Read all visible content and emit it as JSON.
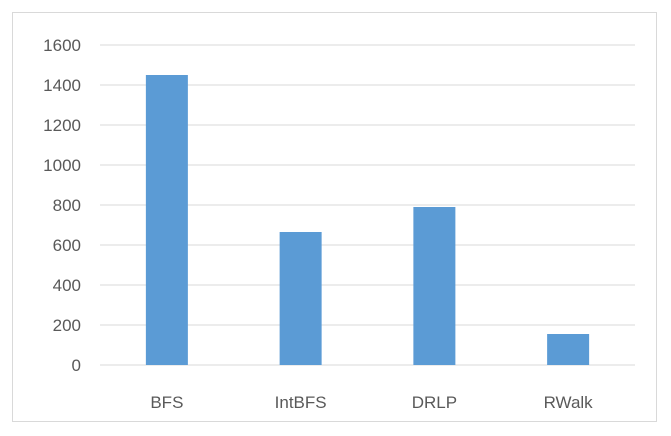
{
  "chart_data": {
    "type": "bar",
    "title": "",
    "xlabel": "",
    "ylabel": "",
    "categories": [
      "BFS",
      "IntBFS",
      "DRLP",
      "RWalk"
    ],
    "values": [
      1450,
      665,
      790,
      155
    ],
    "ylim": [
      0,
      1600
    ],
    "y_ticks": [
      0,
      200,
      400,
      600,
      800,
      1000,
      1200,
      1400,
      1600
    ],
    "grid": true,
    "legend": "none",
    "bar_color": "#5b9bd5",
    "grid_color": "#d9d9d9"
  }
}
